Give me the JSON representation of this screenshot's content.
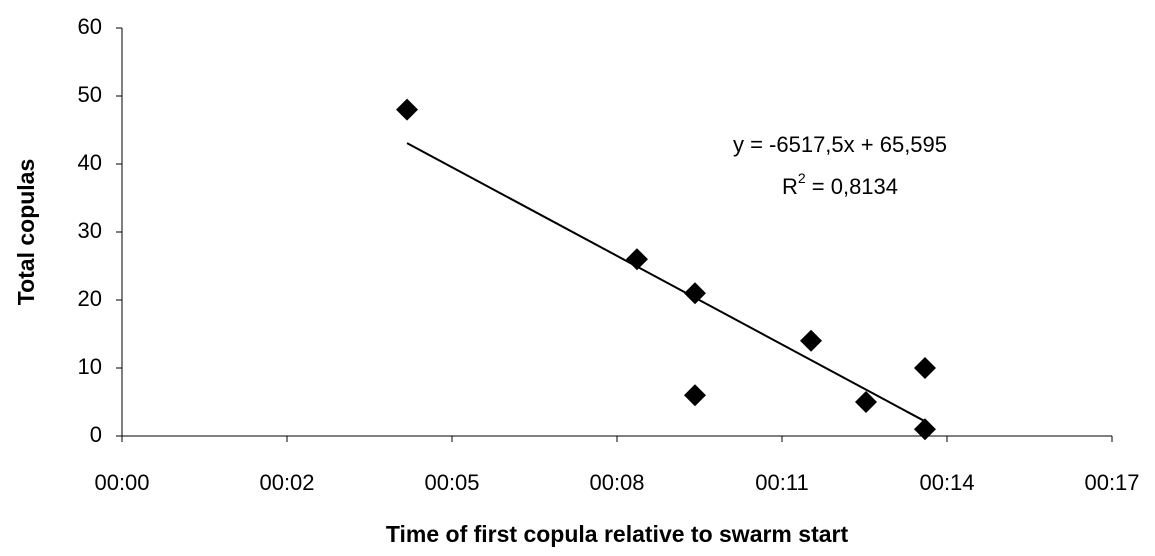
{
  "chart_data": {
    "type": "scatter",
    "x_label": "Time of first copula relative to swarm start",
    "y_label": "Total copulas",
    "x": [
      0.003455,
      0.006242,
      0.006945,
      0.006945,
      0.008352,
      0.009018,
      0.009733,
      0.009733
    ],
    "values": [
      48,
      26,
      21,
      6,
      14,
      5,
      10,
      1
    ],
    "color": "#000000",
    "xlim": [
      0,
      0.012
    ],
    "xticks": [
      {
        "value": 0,
        "label": "00:00"
      },
      {
        "value": 0.002,
        "label": "00:02"
      },
      {
        "value": 0.004,
        "label": "00:05"
      },
      {
        "value": 0.006,
        "label": "00:08"
      },
      {
        "value": 0.008,
        "label": "00:11"
      },
      {
        "value": 0.01,
        "label": "00:14"
      },
      {
        "value": 0.012,
        "label": "00:17"
      }
    ],
    "ylim": [
      0,
      60
    ],
    "yticks": [
      0,
      10,
      20,
      30,
      40,
      50,
      60
    ],
    "grid": false,
    "trendline": {
      "slope": -6517.5,
      "intercept": 65.595,
      "equation": "y = -6517,5x + 65,595",
      "r2_base": "R",
      "r2_sup": "2",
      "r2_rest": " = 0,8134"
    }
  }
}
